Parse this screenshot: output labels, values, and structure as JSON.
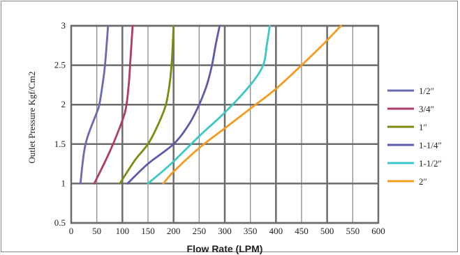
{
  "chart_data": {
    "type": "line",
    "xlabel": "Flow Rate (LPM)",
    "ylabel": "Outlet Pressure Kgf/Cm2",
    "xlim": [
      0,
      600
    ],
    "ylim": [
      0.5,
      3
    ],
    "x_ticks": [
      "0",
      "50",
      "100",
      "150",
      "200",
      "250",
      "300",
      "350",
      "400",
      "450",
      "500",
      "550",
      "600"
    ],
    "y_ticks": [
      "0.5",
      "1",
      "1.5",
      "2",
      "2.5",
      "3"
    ],
    "grid": true,
    "legend_position": "right",
    "series": [
      {
        "name": "1/2″",
        "color": "#6a6aae",
        "points": [
          [
            18,
            1
          ],
          [
            28,
            1.5
          ],
          [
            50,
            1.9
          ],
          [
            55,
            2.0
          ],
          [
            60,
            2.2
          ],
          [
            66,
            2.5
          ],
          [
            72,
            3
          ]
        ]
      },
      {
        "name": "3/4″",
        "color": "#b03a6a",
        "points": [
          [
            45,
            1
          ],
          [
            75,
            1.4
          ],
          [
            100,
            1.8
          ],
          [
            108,
            2.0
          ],
          [
            113,
            2.3
          ],
          [
            116,
            2.6
          ],
          [
            120,
            3
          ]
        ]
      },
      {
        "name": "1″",
        "color": "#7d8a10",
        "points": [
          [
            95,
            1
          ],
          [
            125,
            1.3
          ],
          [
            150,
            1.5
          ],
          [
            170,
            1.75
          ],
          [
            185,
            2.0
          ],
          [
            193,
            2.3
          ],
          [
            197,
            2.6
          ],
          [
            200,
            3
          ]
        ]
      },
      {
        "name": "1-1/4″",
        "color": "#5b5ba8",
        "points": [
          [
            110,
            1
          ],
          [
            150,
            1.25
          ],
          [
            200,
            1.5
          ],
          [
            230,
            1.75
          ],
          [
            250,
            2.0
          ],
          [
            265,
            2.25
          ],
          [
            275,
            2.5
          ],
          [
            282,
            2.75
          ],
          [
            290,
            3
          ]
        ]
      },
      {
        "name": "1-1/2″",
        "color": "#3cc7c7",
        "points": [
          [
            150,
            1
          ],
          [
            195,
            1.25
          ],
          [
            250,
            1.6
          ],
          [
            300,
            1.9
          ],
          [
            350,
            2.25
          ],
          [
            375,
            2.5
          ],
          [
            382,
            2.75
          ],
          [
            388,
            3
          ]
        ]
      },
      {
        "name": "2″",
        "color": "#f59a1e",
        "points": [
          [
            180,
            1
          ],
          [
            200,
            1.15
          ],
          [
            250,
            1.45
          ],
          [
            300,
            1.7
          ],
          [
            350,
            1.95
          ],
          [
            400,
            2.2
          ],
          [
            450,
            2.5
          ],
          [
            490,
            2.75
          ],
          [
            527,
            3
          ]
        ]
      }
    ]
  }
}
